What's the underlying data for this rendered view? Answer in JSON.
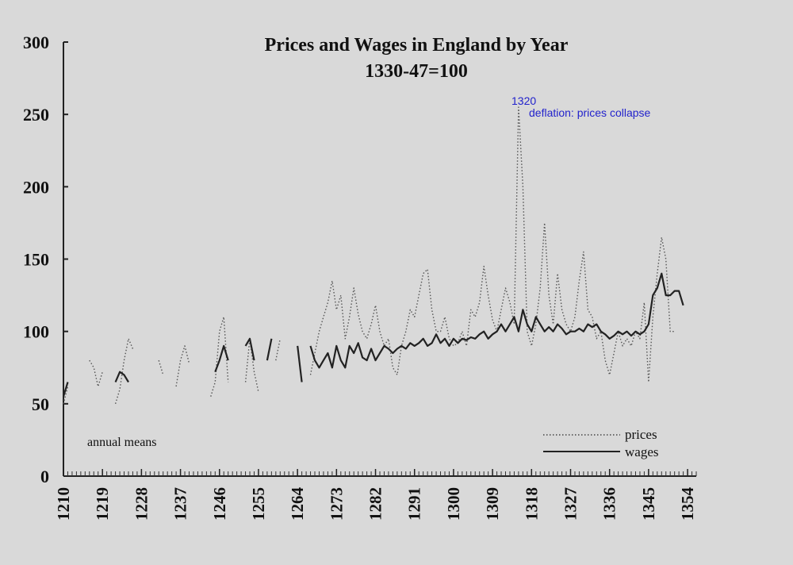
{
  "chart_data": {
    "type": "line",
    "title": "Prices and Wages in England by Year",
    "subtitle": "1330-47=100",
    "xlabel": "",
    "ylabel": "",
    "xlim": [
      1210,
      1356
    ],
    "ylim": [
      0,
      300
    ],
    "yticks": [
      0,
      50,
      100,
      150,
      200,
      250,
      300
    ],
    "xticks": [
      1210,
      1219,
      1228,
      1237,
      1246,
      1255,
      1264,
      1273,
      1282,
      1291,
      1300,
      1309,
      1318,
      1327,
      1336,
      1345,
      1354
    ],
    "grid": false,
    "legend_position": "bottom-right",
    "note": "annual means",
    "annotations": [
      {
        "x": 1320,
        "y": 255,
        "label": "1320",
        "text": "deflation: prices collapse"
      }
    ],
    "series": [
      {
        "name": "prices",
        "style": "dotted",
        "segments": [
          [
            [
              1210,
              50
            ],
            [
              1211,
              62
            ]
          ],
          [
            [
              1216,
              80
            ],
            [
              1217,
              75
            ],
            [
              1218,
              62
            ],
            [
              1219,
              72
            ]
          ],
          [
            [
              1222,
              50
            ],
            [
              1223,
              60
            ],
            [
              1224,
              80
            ],
            [
              1225,
              95
            ],
            [
              1226,
              88
            ]
          ],
          [
            [
              1232,
              80
            ],
            [
              1233,
              70
            ]
          ],
          [
            [
              1236,
              62
            ],
            [
              1237,
              80
            ],
            [
              1238,
              90
            ],
            [
              1239,
              78
            ]
          ],
          [
            [
              1244,
              55
            ],
            [
              1245,
              65
            ],
            [
              1246,
              100
            ],
            [
              1247,
              110
            ],
            [
              1248,
              65
            ]
          ],
          [
            [
              1252,
              65
            ],
            [
              1253,
              95
            ],
            [
              1254,
              72
            ],
            [
              1255,
              58
            ]
          ],
          [
            [
              1259,
              80
            ],
            [
              1260,
              95
            ]
          ],
          [
            [
              1267,
              70
            ],
            [
              1268,
              85
            ],
            [
              1269,
              100
            ],
            [
              1270,
              110
            ],
            [
              1271,
              120
            ],
            [
              1272,
              135
            ],
            [
              1273,
              115
            ],
            [
              1274,
              125
            ],
            [
              1275,
              95
            ],
            [
              1276,
              110
            ],
            [
              1277,
              130
            ],
            [
              1278,
              112
            ],
            [
              1279,
              100
            ],
            [
              1280,
              95
            ],
            [
              1281,
              105
            ],
            [
              1282,
              118
            ],
            [
              1283,
              100
            ],
            [
              1284,
              90
            ],
            [
              1285,
              95
            ],
            [
              1286,
              75
            ],
            [
              1287,
              70
            ],
            [
              1288,
              90
            ],
            [
              1289,
              100
            ],
            [
              1290,
              115
            ],
            [
              1291,
              110
            ],
            [
              1292,
              125
            ],
            [
              1293,
              140
            ],
            [
              1294,
              143
            ],
            [
              1295,
              115
            ],
            [
              1296,
              100
            ],
            [
              1297,
              100
            ],
            [
              1298,
              110
            ],
            [
              1299,
              95
            ],
            [
              1300,
              90
            ],
            [
              1301,
              92
            ],
            [
              1302,
              100
            ],
            [
              1303,
              90
            ],
            [
              1304,
              115
            ],
            [
              1305,
              110
            ],
            [
              1306,
              120
            ],
            [
              1307,
              145
            ],
            [
              1308,
              125
            ],
            [
              1309,
              108
            ],
            [
              1310,
              100
            ],
            [
              1311,
              115
            ],
            [
              1312,
              130
            ],
            [
              1313,
              120
            ],
            [
              1314,
              105
            ],
            [
              1315,
              255
            ],
            [
              1316,
              200
            ],
            [
              1317,
              100
            ],
            [
              1318,
              90
            ],
            [
              1319,
              105
            ],
            [
              1320,
              130
            ],
            [
              1321,
              175
            ],
            [
              1322,
              125
            ],
            [
              1323,
              105
            ],
            [
              1324,
              140
            ],
            [
              1325,
              115
            ],
            [
              1326,
              105
            ],
            [
              1327,
              100
            ],
            [
              1328,
              110
            ],
            [
              1329,
              135
            ],
            [
              1330,
              155
            ],
            [
              1331,
              115
            ],
            [
              1332,
              110
            ],
            [
              1333,
              95
            ],
            [
              1334,
              100
            ],
            [
              1335,
              80
            ],
            [
              1336,
              70
            ],
            [
              1337,
              85
            ],
            [
              1338,
              100
            ],
            [
              1339,
              90
            ],
            [
              1340,
              95
            ],
            [
              1341,
              90
            ],
            [
              1342,
              100
            ],
            [
              1343,
              95
            ],
            [
              1344,
              120
            ],
            [
              1345,
              65
            ],
            [
              1346,
              110
            ],
            [
              1347,
              140
            ],
            [
              1348,
              165
            ],
            [
              1349,
              150
            ],
            [
              1350,
              100
            ],
            [
              1351,
              100
            ]
          ]
        ]
      },
      {
        "name": "wages",
        "style": "solid",
        "segments": [
          [
            [
              1210,
              55
            ],
            [
              1211,
              65
            ]
          ],
          [
            [
              1222,
              65
            ],
            [
              1223,
              72
            ],
            [
              1224,
              70
            ],
            [
              1225,
              65
            ]
          ],
          [
            [
              1245,
              72
            ],
            [
              1246,
              80
            ],
            [
              1247,
              90
            ],
            [
              1248,
              80
            ]
          ],
          [
            [
              1252,
              90
            ],
            [
              1253,
              95
            ],
            [
              1254,
              80
            ]
          ],
          [
            [
              1257,
              80
            ],
            [
              1258,
              95
            ]
          ],
          [
            [
              1264,
              90
            ],
            [
              1265,
              65
            ]
          ],
          [
            [
              1267,
              90
            ],
            [
              1268,
              80
            ],
            [
              1269,
              75
            ],
            [
              1270,
              80
            ],
            [
              1271,
              85
            ],
            [
              1272,
              75
            ],
            [
              1273,
              90
            ],
            [
              1274,
              80
            ],
            [
              1275,
              75
            ],
            [
              1276,
              90
            ],
            [
              1277,
              85
            ],
            [
              1278,
              92
            ],
            [
              1279,
              82
            ],
            [
              1280,
              80
            ],
            [
              1281,
              88
            ],
            [
              1282,
              80
            ],
            [
              1283,
              85
            ],
            [
              1284,
              90
            ],
            [
              1285,
              88
            ],
            [
              1286,
              85
            ],
            [
              1287,
              88
            ],
            [
              1288,
              90
            ],
            [
              1289,
              88
            ],
            [
              1290,
              92
            ],
            [
              1291,
              90
            ],
            [
              1292,
              92
            ],
            [
              1293,
              95
            ],
            [
              1294,
              90
            ],
            [
              1295,
              92
            ],
            [
              1296,
              98
            ],
            [
              1297,
              92
            ],
            [
              1298,
              95
            ],
            [
              1299,
              90
            ],
            [
              1300,
              95
            ],
            [
              1301,
              92
            ],
            [
              1302,
              95
            ],
            [
              1303,
              94
            ],
            [
              1304,
              96
            ],
            [
              1305,
              95
            ],
            [
              1306,
              98
            ],
            [
              1307,
              100
            ],
            [
              1308,
              95
            ],
            [
              1309,
              98
            ],
            [
              1310,
              100
            ],
            [
              1311,
              105
            ],
            [
              1312,
              100
            ],
            [
              1313,
              105
            ],
            [
              1314,
              110
            ],
            [
              1315,
              100
            ],
            [
              1316,
              115
            ],
            [
              1317,
              105
            ],
            [
              1318,
              100
            ],
            [
              1319,
              110
            ],
            [
              1320,
              105
            ],
            [
              1321,
              100
            ],
            [
              1322,
              103
            ],
            [
              1323,
              100
            ],
            [
              1324,
              105
            ],
            [
              1325,
              102
            ],
            [
              1326,
              98
            ],
            [
              1327,
              100
            ],
            [
              1328,
              100
            ],
            [
              1329,
              102
            ],
            [
              1330,
              100
            ],
            [
              1331,
              105
            ],
            [
              1332,
              103
            ],
            [
              1333,
              105
            ],
            [
              1334,
              100
            ],
            [
              1335,
              98
            ],
            [
              1336,
              95
            ],
            [
              1337,
              97
            ],
            [
              1338,
              100
            ],
            [
              1339,
              98
            ],
            [
              1340,
              100
            ],
            [
              1341,
              97
            ],
            [
              1342,
              100
            ],
            [
              1343,
              98
            ],
            [
              1344,
              100
            ],
            [
              1345,
              105
            ],
            [
              1346,
              125
            ],
            [
              1347,
              130
            ],
            [
              1348,
              140
            ],
            [
              1349,
              125
            ],
            [
              1350,
              125
            ],
            [
              1351,
              128
            ],
            [
              1352,
              128
            ],
            [
              1353,
              118
            ]
          ]
        ]
      }
    ]
  }
}
